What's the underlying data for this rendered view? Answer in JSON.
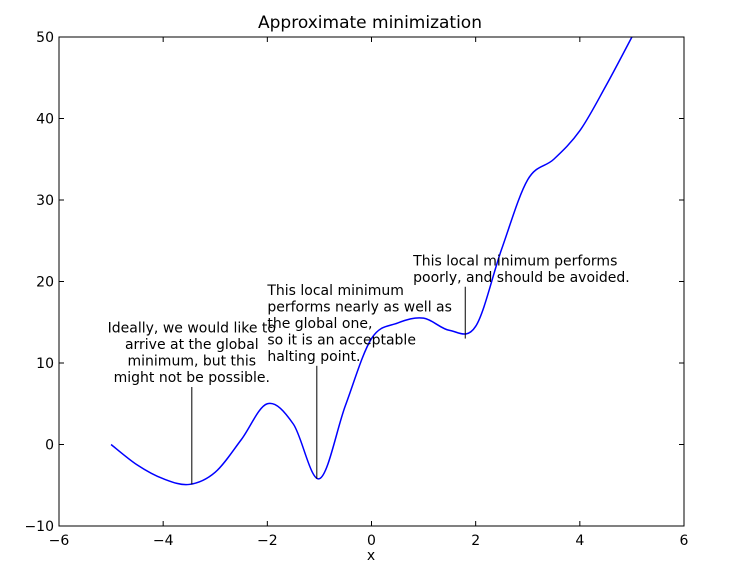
{
  "chart_data": {
    "type": "line",
    "title": "Approximate minimization",
    "xlabel": "x",
    "ylabel": "",
    "xlim": [
      -6,
      6
    ],
    "ylim": [
      -10,
      50
    ],
    "xticks": [
      -6,
      -4,
      -2,
      0,
      2,
      4,
      6
    ],
    "xtick_labels": [
      "−6",
      "−4",
      "−2",
      "0",
      "2",
      "4",
      "6"
    ],
    "yticks": [
      -10,
      0,
      10,
      20,
      30,
      40,
      50
    ],
    "ytick_labels": [
      "−10",
      "0",
      "10",
      "20",
      "30",
      "40",
      "50"
    ],
    "grid": false,
    "line_color": "#0000ff",
    "series": [
      {
        "name": "",
        "x": [
          -5.0,
          -4.5,
          -4.0,
          -3.5,
          -3.0,
          -2.5,
          -2.0,
          -1.5,
          -1.0,
          -0.5,
          0.0,
          0.5,
          1.0,
          1.5,
          2.0,
          2.5,
          3.0,
          3.5,
          4.0,
          4.5,
          5.0
        ],
        "y": [
          0.0,
          -2.5,
          -4.2,
          -4.9,
          -3.4,
          0.6,
          5.0,
          2.5,
          -4.2,
          4.8,
          13.0,
          14.9,
          15.5,
          14.0,
          14.5,
          24.0,
          32.5,
          35.0,
          38.5,
          44.0,
          50.0
        ]
      }
    ],
    "annotations": [
      {
        "lines": [
          "Ideally, we would like to",
          "arrive at the global",
          "minimum, but this",
          "might not be possible."
        ],
        "point": [
          -3.45,
          -4.9
        ],
        "text_x": -3.45,
        "text_y": 7.3
      },
      {
        "lines": [
          "This local minimum",
          "performs nearly as well as",
          "the global one,",
          "so it is an acceptable",
          "halting point."
        ],
        "point": [
          -1.05,
          -4.2
        ],
        "text_x": -2.0,
        "text_y": 9.9
      },
      {
        "lines": [
          "This local minimum performs",
          "poorly, and should be avoided."
        ],
        "point": [
          1.8,
          13.0
        ],
        "text_x": 0.8,
        "text_y": 19.6
      }
    ]
  }
}
